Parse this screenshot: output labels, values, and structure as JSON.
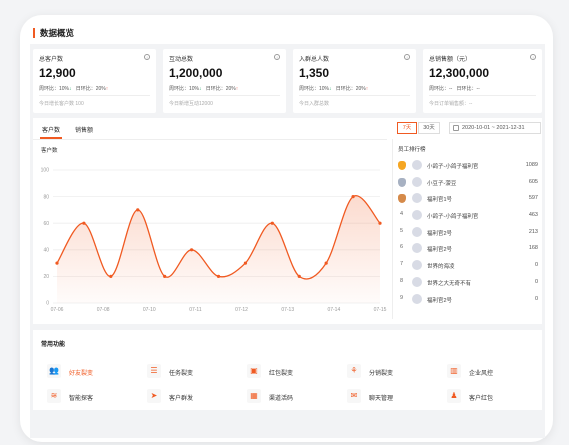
{
  "page": {
    "title": "数据概览"
  },
  "cards": [
    {
      "label": "总客户数",
      "value": "12,900",
      "mom_label": "周环比：10%",
      "mom_dir": "down",
      "dod_label": "日环比：20%",
      "dod_dir": "up",
      "foot": "今日增长客户数 100"
    },
    {
      "label": "互动总数",
      "value": "1,200,000",
      "mom_label": "周环比：10%",
      "mom_dir": "down",
      "dod_label": "日环比：20%",
      "dod_dir": "up",
      "foot": "今日新增互动12000"
    },
    {
      "label": "入群总人数",
      "value": "1,350",
      "mom_label": "周环比：10%",
      "mom_dir": "down",
      "dod_label": "日环比：20%",
      "dod_dir": "up",
      "foot": "今日入群总数"
    },
    {
      "label": "总销售额（元）",
      "value": "12,300,000",
      "mom_label": "周环比：--",
      "mom_dir": "",
      "dod_label": "日环比：--",
      "dod_dir": "",
      "foot": "今日订单销售额：--"
    }
  ],
  "tabs": [
    {
      "label": "客户数"
    },
    {
      "label": "销售额"
    }
  ],
  "range_buttons": [
    {
      "label": "7天"
    },
    {
      "label": "30天"
    }
  ],
  "date_range": "2020-10-01 ~ 2021-12-31",
  "chart_title": "客户数",
  "chart_data": {
    "type": "area",
    "title": "客户数",
    "categories": [
      "07-06",
      "07-08",
      "07-10",
      "07-11",
      "07-12",
      "07-13",
      "07-14",
      "07-15"
    ],
    "x": [
      0,
      1,
      2,
      3,
      4,
      5,
      6,
      7,
      8,
      9,
      10,
      11,
      12
    ],
    "values": [
      30,
      60,
      20,
      70,
      20,
      40,
      20,
      30,
      60,
      20,
      30,
      80,
      60
    ],
    "ylim": [
      0,
      100
    ],
    "yticks": [
      "0",
      "20",
      "40",
      "60",
      "80",
      "100"
    ],
    "grid": true,
    "color": "#f05a22"
  },
  "ranking": {
    "title": "员工排行榜",
    "items": [
      {
        "rank": "1",
        "name": "小鸽子-小鸽子福利官",
        "count": "1089"
      },
      {
        "rank": "2",
        "name": "小豆子-菠豆",
        "count": "605"
      },
      {
        "rank": "3",
        "name": "福利官1号",
        "count": "597"
      },
      {
        "rank": "4",
        "name": "小鸽子-小鸽子福利官",
        "count": "463"
      },
      {
        "rank": "5",
        "name": "福利官2号",
        "count": "213"
      },
      {
        "rank": "6",
        "name": "福利官2号",
        "count": "168"
      },
      {
        "rank": "7",
        "name": "世界的海凌",
        "count": "0"
      },
      {
        "rank": "8",
        "name": "世界之大无奇不有",
        "count": "0"
      },
      {
        "rank": "9",
        "name": "福利官2号",
        "count": "0"
      }
    ]
  },
  "functions": {
    "title": "常用功能",
    "items": [
      {
        "label": "好友裂变",
        "icon": "users-icon",
        "glyph": "👥"
      },
      {
        "label": "任务裂变",
        "icon": "task-icon",
        "glyph": "☰"
      },
      {
        "label": "红包裂变",
        "icon": "red-packet-icon",
        "glyph": "▣"
      },
      {
        "label": "分销裂变",
        "icon": "distribution-icon",
        "glyph": "⚘"
      },
      {
        "label": "企业风控",
        "icon": "building-icon",
        "glyph": "▥"
      },
      {
        "label": "智能探客",
        "icon": "radar-icon",
        "glyph": "≋"
      },
      {
        "label": "客户群发",
        "icon": "send-icon",
        "glyph": "➤"
      },
      {
        "label": "渠道活码",
        "icon": "qrcode-icon",
        "glyph": "▦"
      },
      {
        "label": "聊天管理",
        "icon": "chat-icon",
        "glyph": "✉"
      },
      {
        "label": "客户红包",
        "icon": "user-gift-icon",
        "glyph": "♟"
      }
    ]
  },
  "colors": {
    "accent": "#f05a22",
    "down": "#21a568",
    "up": "#e5493a",
    "gold": "#f5a623",
    "silver": "#a7b1c2",
    "bronze": "#d58a4a"
  }
}
